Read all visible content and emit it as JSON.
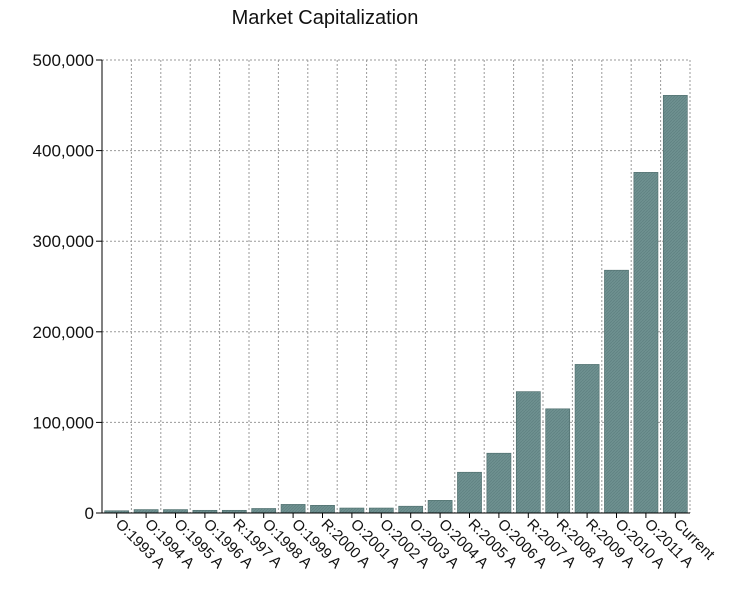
{
  "chart_data": {
    "type": "bar",
    "title": "Market Capitalization",
    "xlabel": "",
    "ylabel": "",
    "categories": [
      "O:1993 A",
      "O:1994 A",
      "O:1995 A",
      "O:1996 A",
      "R:1997 A",
      "O:1998 A",
      "O:1999 A",
      "R:2000 A",
      "O:2001 A",
      "O:2002 A",
      "O:2003 A",
      "O:2004 A",
      "R:2005 A",
      "O:2006 A",
      "R:2007 A",
      "R:2008 A",
      "R:2009 A",
      "O:2010 A",
      "O:2011 A",
      "Current"
    ],
    "values": [
      2500,
      3800,
      3800,
      3000,
      3000,
      5000,
      9500,
      8500,
      5500,
      5500,
      7500,
      14000,
      45000,
      66000,
      134000,
      115000,
      164000,
      268000,
      376000,
      461000
    ],
    "ylim": [
      0,
      500000
    ],
    "yticks": [
      0,
      100000,
      200000,
      300000,
      400000,
      500000
    ],
    "ytick_labels": [
      "0",
      "100,000",
      "200,000",
      "300,000",
      "400,000",
      "500,000"
    ],
    "grid": true,
    "colors": {
      "bar_fill": "#6e9190",
      "bar_stroke": "#4d6c6b",
      "grid": "#9a9a9a",
      "axis": "#000000"
    }
  }
}
